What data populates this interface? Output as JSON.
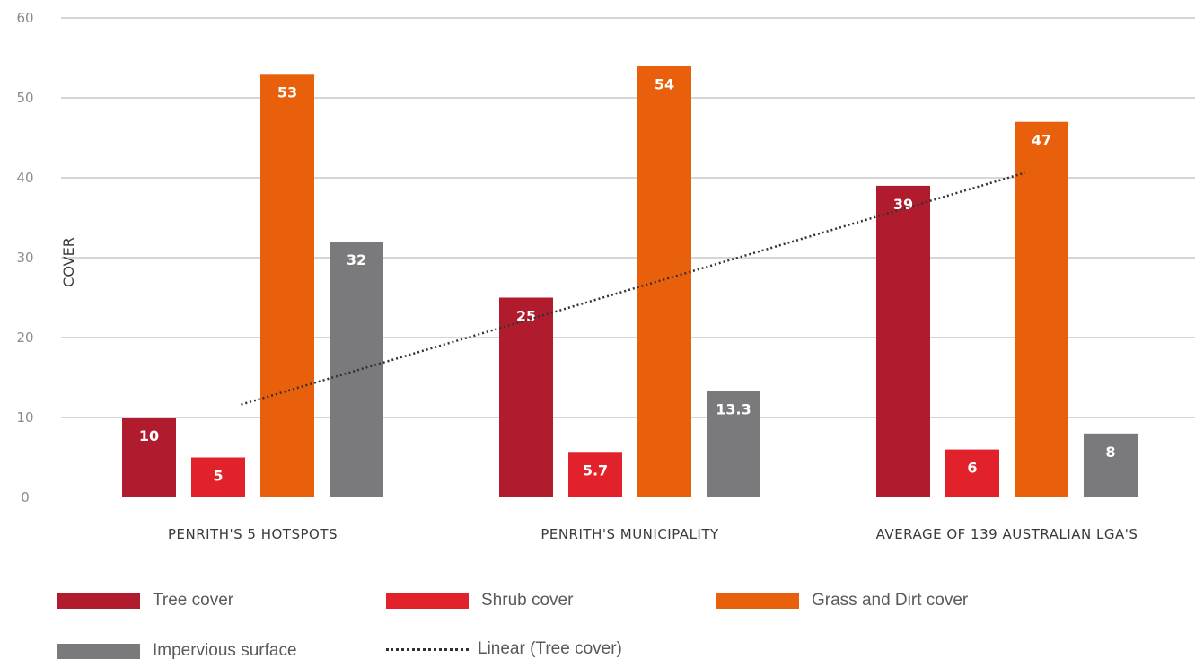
{
  "chart_data": {
    "type": "bar",
    "ylabel": "COVER",
    "ylim": [
      0,
      60
    ],
    "yticks": [
      0,
      10,
      20,
      30,
      40,
      50,
      60
    ],
    "grid": true,
    "legend_position": "bottom",
    "categories": [
      "PENRITH'S 5 HOTSPOTS",
      "PENRITH'S MUNICIPALITY",
      "AVERAGE OF 139 AUSTRALIAN LGA'S"
    ],
    "series": [
      {
        "name": "Tree cover",
        "values": [
          10,
          25,
          39
        ],
        "labels": [
          "10",
          "25",
          "39"
        ],
        "color": "#b01c2e"
      },
      {
        "name": "Shrub cover",
        "values": [
          5,
          5.7,
          6
        ],
        "labels": [
          "5",
          "5.7",
          "6"
        ],
        "color": "#e1222b"
      },
      {
        "name": "Grass and Dirt cover",
        "values": [
          53,
          54,
          47
        ],
        "labels": [
          "53",
          "54",
          "47"
        ],
        "color": "#e85f0c"
      },
      {
        "name": "Impervious surface",
        "values": [
          32,
          13.3,
          8
        ],
        "labels": [
          "32",
          "13.3",
          "8"
        ],
        "color": "#7a7a7c"
      }
    ],
    "trendline": {
      "name": "Linear (Tree cover)",
      "type": "linear",
      "of_series": "Tree cover",
      "style": "dotted",
      "color": "#333333"
    }
  }
}
